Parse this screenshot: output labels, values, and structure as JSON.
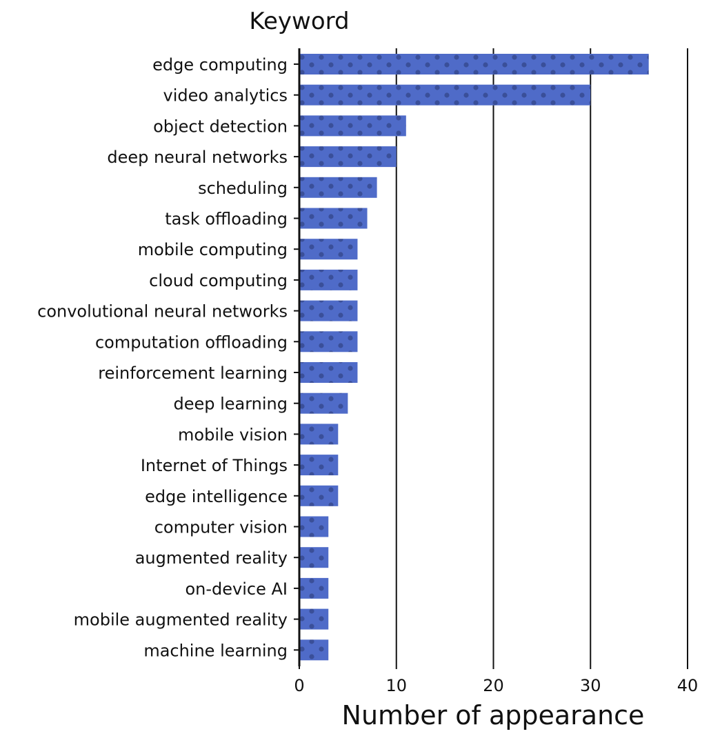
{
  "chart_data": {
    "type": "bar",
    "orientation": "horizontal",
    "title": "Keyword",
    "xlabel": "Number of appearance",
    "ylabel": "",
    "xlim": [
      0,
      40
    ],
    "xticks": [
      0,
      10,
      20,
      30,
      40
    ],
    "grid": "vertical lines at x ticks",
    "bar_color": "#4f6bc8",
    "bar_pattern": "dots",
    "dot_color": "#3a4f99",
    "categories": [
      "edge computing",
      "video analytics",
      "object detection",
      "deep neural networks",
      "scheduling",
      "task offloading",
      "mobile computing",
      "cloud computing",
      "convolutional neural networks",
      "computation offloading",
      "reinforcement learning",
      "deep learning",
      "mobile vision",
      "Internet of Things",
      "edge intelligence",
      "computer vision",
      "augmented reality",
      "on-device AI",
      "mobile augmented reality",
      "machine learning"
    ],
    "values": [
      36,
      30,
      11,
      10,
      8,
      7,
      6,
      6,
      6,
      6,
      6,
      5,
      4,
      4,
      4,
      3,
      3,
      3,
      3,
      3
    ]
  }
}
